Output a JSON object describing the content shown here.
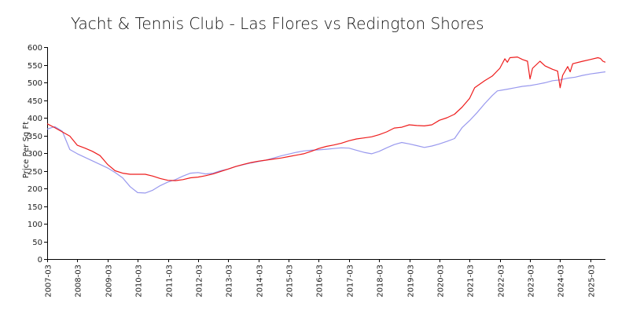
{
  "chart_data": {
    "type": "line",
    "title": "Yacht & Tennis Club - Las Flores vs Redington Shores",
    "xlabel": "",
    "ylabel": "Price Per Sq Ft",
    "ylim": [
      0,
      600
    ],
    "y_ticks": [
      0,
      50,
      100,
      150,
      200,
      250,
      300,
      350,
      400,
      450,
      500,
      550,
      600
    ],
    "x_tick_labels": [
      "2007-03",
      "2008-03",
      "2009-03",
      "2010-03",
      "2011-03",
      "2012-03",
      "2013-03",
      "2014-03",
      "2015-03",
      "2016-03",
      "2017-03",
      "2018-03",
      "2019-03",
      "2020-03",
      "2021-03",
      "2022-03",
      "2023-03",
      "2024-03",
      "2025-03"
    ],
    "x_range": [
      "2007-03",
      "2025-09"
    ],
    "grid": false,
    "legend": "none",
    "series": [
      {
        "color": "#ee1c1c",
        "points": [
          [
            "2007-03",
            383
          ],
          [
            "2007-06",
            372
          ],
          [
            "2007-09",
            360
          ],
          [
            "2007-12",
            348
          ],
          [
            "2008-03",
            322
          ],
          [
            "2008-06",
            314
          ],
          [
            "2008-09",
            305
          ],
          [
            "2008-12",
            293
          ],
          [
            "2009-03",
            268
          ],
          [
            "2009-06",
            250
          ],
          [
            "2009-09",
            243
          ],
          [
            "2009-12",
            240
          ],
          [
            "2010-03",
            240
          ],
          [
            "2010-06",
            240
          ],
          [
            "2010-09",
            235
          ],
          [
            "2010-12",
            228
          ],
          [
            "2011-03",
            223
          ],
          [
            "2011-06",
            222
          ],
          [
            "2011-09",
            225
          ],
          [
            "2011-12",
            230
          ],
          [
            "2012-03",
            232
          ],
          [
            "2012-06",
            236
          ],
          [
            "2012-09",
            241
          ],
          [
            "2012-12",
            248
          ],
          [
            "2013-03",
            255
          ],
          [
            "2013-06",
            262
          ],
          [
            "2013-09",
            268
          ],
          [
            "2013-12",
            273
          ],
          [
            "2014-03",
            277
          ],
          [
            "2014-06",
            280
          ],
          [
            "2014-09",
            283
          ],
          [
            "2014-12",
            286
          ],
          [
            "2015-03",
            290
          ],
          [
            "2015-06",
            294
          ],
          [
            "2015-09",
            298
          ],
          [
            "2015-12",
            305
          ],
          [
            "2016-03",
            313
          ],
          [
            "2016-06",
            319
          ],
          [
            "2016-09",
            323
          ],
          [
            "2016-12",
            328
          ],
          [
            "2017-03",
            335
          ],
          [
            "2017-06",
            340
          ],
          [
            "2017-09",
            343
          ],
          [
            "2017-12",
            346
          ],
          [
            "2018-03",
            352
          ],
          [
            "2018-06",
            360
          ],
          [
            "2018-09",
            371
          ],
          [
            "2018-12",
            373
          ],
          [
            "2019-03",
            380
          ],
          [
            "2019-06",
            378
          ],
          [
            "2019-09",
            377
          ],
          [
            "2019-12",
            380
          ],
          [
            "2020-03",
            393
          ],
          [
            "2020-06",
            400
          ],
          [
            "2020-09",
            410
          ],
          [
            "2020-12",
            430
          ],
          [
            "2021-03",
            455
          ],
          [
            "2021-05",
            485
          ],
          [
            "2021-09",
            505
          ],
          [
            "2021-12",
            518
          ],
          [
            "2022-03",
            540
          ],
          [
            "2022-05",
            567
          ],
          [
            "2022-06",
            557
          ],
          [
            "2022-07",
            570
          ],
          [
            "2022-10",
            572
          ],
          [
            "2022-12",
            565
          ],
          [
            "2023-02",
            560
          ],
          [
            "2023-03",
            510
          ],
          [
            "2023-04",
            540
          ],
          [
            "2023-07",
            560
          ],
          [
            "2023-09",
            547
          ],
          [
            "2023-12",
            537
          ],
          [
            "2024-02",
            532
          ],
          [
            "2024-03",
            485
          ],
          [
            "2024-04",
            520
          ],
          [
            "2024-06",
            545
          ],
          [
            "2024-07",
            530
          ],
          [
            "2024-08",
            553
          ],
          [
            "2024-12",
            560
          ],
          [
            "2025-03",
            565
          ],
          [
            "2025-06",
            570
          ],
          [
            "2025-07",
            568
          ],
          [
            "2025-08",
            560
          ],
          [
            "2025-09",
            557
          ]
        ]
      },
      {
        "color": "#9999ee",
        "points": [
          [
            "2007-03",
            368
          ],
          [
            "2007-06",
            375
          ],
          [
            "2007-09",
            362
          ],
          [
            "2007-12",
            310
          ],
          [
            "2008-03",
            298
          ],
          [
            "2008-06",
            288
          ],
          [
            "2008-09",
            278
          ],
          [
            "2008-12",
            268
          ],
          [
            "2009-03",
            258
          ],
          [
            "2009-06",
            245
          ],
          [
            "2009-09",
            230
          ],
          [
            "2009-12",
            205
          ],
          [
            "2010-03",
            188
          ],
          [
            "2010-06",
            187
          ],
          [
            "2010-09",
            195
          ],
          [
            "2010-12",
            208
          ],
          [
            "2011-03",
            218
          ],
          [
            "2011-06",
            225
          ],
          [
            "2011-09",
            235
          ],
          [
            "2011-12",
            243
          ],
          [
            "2012-03",
            245
          ],
          [
            "2012-06",
            241
          ],
          [
            "2012-09",
            243
          ],
          [
            "2012-12",
            250
          ],
          [
            "2013-03",
            255
          ],
          [
            "2013-06",
            262
          ],
          [
            "2013-09",
            267
          ],
          [
            "2013-12",
            272
          ],
          [
            "2014-03",
            276
          ],
          [
            "2014-06",
            280
          ],
          [
            "2014-09",
            286
          ],
          [
            "2014-12",
            292
          ],
          [
            "2015-03",
            297
          ],
          [
            "2015-06",
            302
          ],
          [
            "2015-09",
            306
          ],
          [
            "2015-12",
            308
          ],
          [
            "2016-03",
            309
          ],
          [
            "2016-06",
            311
          ],
          [
            "2016-09",
            313
          ],
          [
            "2016-12",
            315
          ],
          [
            "2017-03",
            314
          ],
          [
            "2017-06",
            308
          ],
          [
            "2017-09",
            302
          ],
          [
            "2017-12",
            298
          ],
          [
            "2018-03",
            305
          ],
          [
            "2018-06",
            315
          ],
          [
            "2018-09",
            324
          ],
          [
            "2018-12",
            330
          ],
          [
            "2019-03",
            326
          ],
          [
            "2019-06",
            321
          ],
          [
            "2019-09",
            316
          ],
          [
            "2019-12",
            320
          ],
          [
            "2020-03",
            326
          ],
          [
            "2020-06",
            333
          ],
          [
            "2020-09",
            341
          ],
          [
            "2020-12",
            372
          ],
          [
            "2021-03",
            392
          ],
          [
            "2021-06",
            415
          ],
          [
            "2021-09",
            440
          ],
          [
            "2021-12",
            463
          ],
          [
            "2022-02",
            476
          ],
          [
            "2022-06",
            481
          ],
          [
            "2022-09",
            485
          ],
          [
            "2022-12",
            489
          ],
          [
            "2023-03",
            491
          ],
          [
            "2023-06",
            495
          ],
          [
            "2023-09",
            499
          ],
          [
            "2023-12",
            505
          ],
          [
            "2024-03",
            507
          ],
          [
            "2024-06",
            512
          ],
          [
            "2024-09",
            515
          ],
          [
            "2024-12",
            520
          ],
          [
            "2025-03",
            524
          ],
          [
            "2025-06",
            527
          ],
          [
            "2025-09",
            530
          ]
        ]
      }
    ]
  }
}
